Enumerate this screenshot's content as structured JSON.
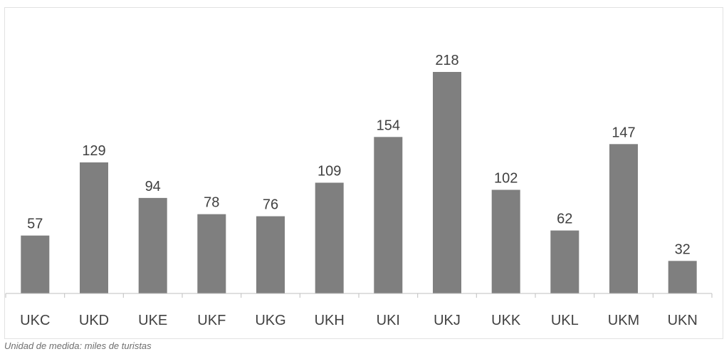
{
  "chart_data": {
    "type": "bar",
    "categories": [
      "UKC",
      "UKD",
      "UKE",
      "UKF",
      "UKG",
      "UKH",
      "UKI",
      "UKJ",
      "UKK",
      "UKL",
      "UKM",
      "UKN"
    ],
    "values": [
      57,
      129,
      94,
      78,
      76,
      109,
      154,
      218,
      102,
      62,
      147,
      32
    ],
    "title": "",
    "xlabel": "",
    "ylabel": "",
    "ylim": [
      0,
      230
    ],
    "grid": false,
    "legend": "none",
    "bar_color": "#7f7f7f",
    "data_labels": true
  },
  "footnote": "Unidad de medida: miles de turistas"
}
